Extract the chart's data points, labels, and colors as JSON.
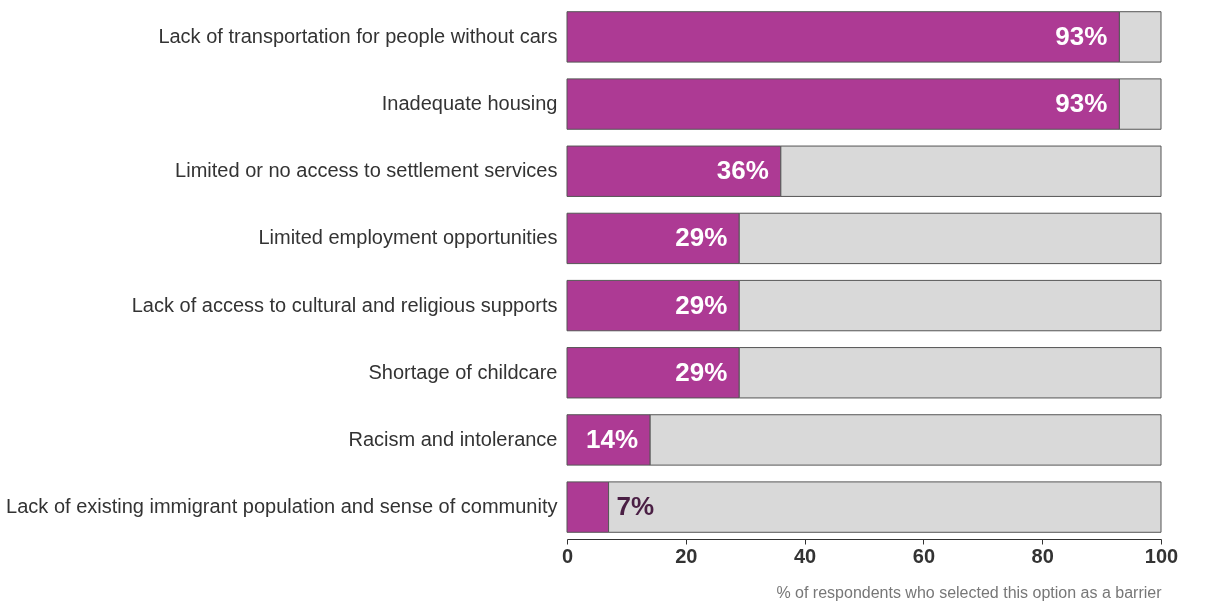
{
  "chart_data": {
    "type": "bar",
    "orientation": "horizontal",
    "stacked": true,
    "xlabel": "% of respondents who selected this option as a barrier",
    "categories": [
      "Lack of transportation for people without cars",
      "Inadequate housing",
      "Limited or no access to settlement services",
      "Limited employment opportunities",
      "Lack of access to cultural and religious supports",
      "Shortage of childcare",
      "Racism and intolerance",
      "Lack of existing immigrant population and sense of community"
    ],
    "series": [
      {
        "color": "#ad3a94",
        "values": [
          93,
          93,
          36,
          29,
          29,
          29,
          14,
          7
        ],
        "value_labels": [
          "93%",
          "93%",
          "36%",
          "29%",
          "29%",
          "29%",
          "14%",
          "7%"
        ]
      },
      {
        "color": "#d9d9d9",
        "values": [
          7,
          7,
          64,
          71,
          71,
          71,
          86,
          93
        ]
      }
    ],
    "xlim": [
      0,
      100
    ],
    "xticks": [
      0,
      20,
      40,
      60,
      80,
      100
    ],
    "grid": false
  }
}
